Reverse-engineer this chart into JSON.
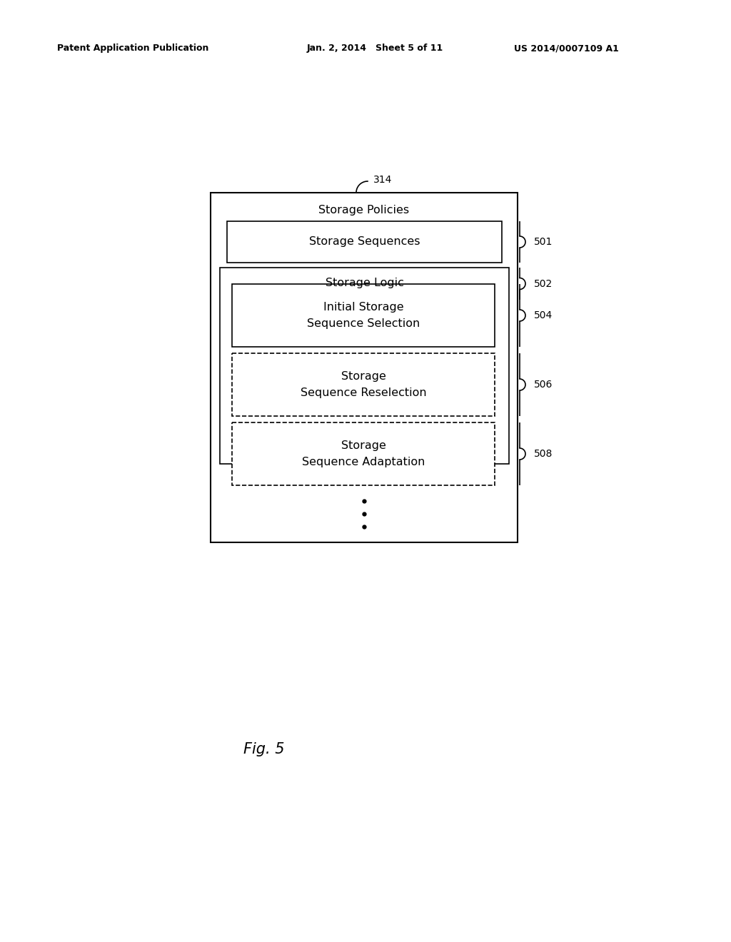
{
  "bg_color": "#ffffff",
  "header_left": "Patent Application Publication",
  "header_mid": "Jan. 2, 2014   Sheet 5 of 11",
  "header_right": "US 2014/0007109 A1",
  "fig_label": "Fig. 5",
  "label_314": "314",
  "label_501": "501",
  "label_502": "502",
  "label_504": "504",
  "label_506": "506",
  "label_508": "508",
  "storage_policies_text": "Storage Policies",
  "storage_sequences_text": "Storage Sequences",
  "storage_logic_text": "Storage Logic",
  "initial_storage_text": "Initial Storage\nSequence Selection",
  "reselection_text": "Storage\nSequence Reselection",
  "adaptation_text": "Storage\nSequence Adaptation",
  "font_size_main": 11.5,
  "font_size_label": 10,
  "font_size_header": 9,
  "font_size_fig": 15
}
